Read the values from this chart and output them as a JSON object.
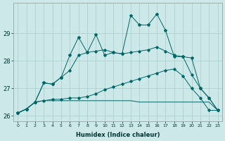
{
  "xlabel": "Humidex (Indice chaleur)",
  "x": [
    0,
    1,
    2,
    3,
    4,
    5,
    6,
    7,
    8,
    9,
    10,
    11,
    12,
    13,
    14,
    15,
    16,
    17,
    18,
    19,
    20,
    21,
    22,
    23
  ],
  "line_spiky": [
    26.1,
    26.25,
    26.5,
    27.2,
    27.15,
    27.4,
    28.2,
    28.85,
    28.3,
    28.95,
    28.2,
    28.3,
    28.25,
    29.65,
    29.3,
    29.3,
    29.7,
    29.1,
    28.15,
    28.15,
    28.1,
    27.0,
    26.65,
    26.2
  ],
  "line_upper": [
    26.1,
    26.25,
    26.5,
    27.2,
    27.15,
    27.4,
    27.65,
    28.2,
    28.3,
    28.35,
    28.4,
    28.3,
    28.25,
    28.3,
    28.35,
    28.4,
    28.5,
    28.35,
    28.2,
    28.15,
    27.5,
    27.0,
    26.65,
    26.2
  ],
  "line_mid": [
    26.1,
    26.25,
    26.5,
    26.55,
    26.6,
    26.6,
    26.65,
    26.65,
    26.7,
    26.8,
    26.95,
    27.05,
    27.15,
    27.25,
    27.35,
    27.45,
    27.55,
    27.65,
    27.7,
    27.45,
    27.0,
    26.65,
    26.2,
    26.2
  ],
  "line_flat": [
    26.1,
    26.25,
    26.5,
    26.55,
    26.55,
    26.55,
    26.55,
    26.55,
    26.55,
    26.55,
    26.55,
    26.55,
    26.55,
    26.55,
    26.5,
    26.5,
    26.5,
    26.5,
    26.5,
    26.5,
    26.5,
    26.5,
    26.5,
    26.2
  ],
  "bg_color": "#cce8e8",
  "line_color": "#006666",
  "grid_color": "#aacccc",
  "ylim": [
    25.8,
    30.1
  ],
  "yticks": [
    26,
    27,
    28,
    29
  ]
}
